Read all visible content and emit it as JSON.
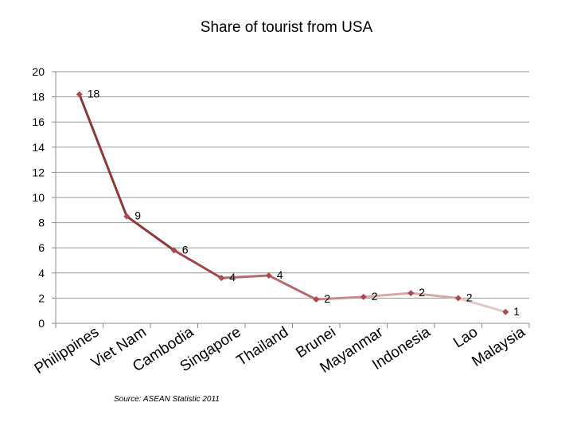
{
  "chart_data": {
    "type": "line",
    "title": "Share of tourist from USA",
    "categories": [
      "Philippines",
      "Viet Nam",
      "Cambodia",
      "Singapore",
      "Thailand",
      "Brunei",
      "Mayanmar",
      "Indonesia",
      "Lao",
      "Malaysia"
    ],
    "values": [
      18.2,
      8.5,
      5.8,
      3.6,
      3.8,
      1.9,
      2.1,
      2.4,
      2.0,
      0.9
    ],
    "data_labels": [
      "18",
      "9",
      "6",
      "4",
      "4",
      "2",
      "2",
      "2",
      "2",
      "1"
    ],
    "ylim": [
      0,
      20
    ],
    "yticks": [
      "0",
      "2",
      "4",
      "6",
      "8",
      "10",
      "12",
      "14",
      "16",
      "18",
      "20"
    ],
    "grid": true,
    "legend": "none",
    "line_colors": [
      "#8b3a3a",
      "#a04848",
      "#b86a6a",
      "#c88a8a",
      "#d6aaaa",
      "#e4c8c8"
    ],
    "marker_color": "#b0474f",
    "xlabel": "",
    "ylabel": ""
  },
  "source_note": "Source: ASEAN Statistic 2011"
}
